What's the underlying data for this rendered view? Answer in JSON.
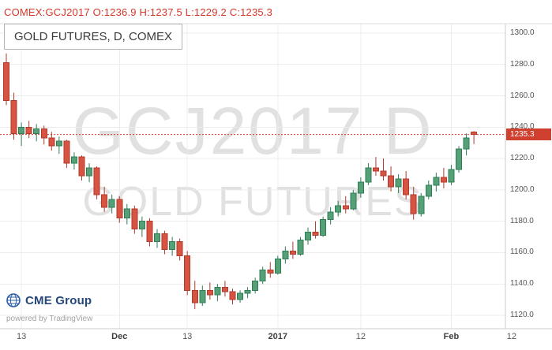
{
  "header": {
    "ohlc_line": "COMEX:GCJ2017 O:1236.9 H:1237.5 L:1229.2 C:1235.3",
    "text_color": "#d7362a"
  },
  "chart": {
    "title": "GOLD FUTURES, D, COMEX",
    "watermark_line1": "GCJ2017 D",
    "watermark_line2": "GOLD FUTURES"
  },
  "price_axis": {
    "last_price_label": "1235.3",
    "label_bg_color": "#d0402f"
  },
  "footer": {
    "cme_label": "CME Group",
    "cme_color": "#25477a",
    "powered_by": "powered by TradingView"
  },
  "chart_data": {
    "type": "candlestick",
    "title": "GOLD FUTURES, D, COMEX",
    "symbol": "COMEX:GCJ2017",
    "exchange": "COMEX",
    "interval": "D",
    "last_bar": {
      "open": 1236.9,
      "high": 1237.5,
      "low": 1229.2,
      "close": 1235.3
    },
    "last_price": 1235.3,
    "ylim": [
      1111.5,
      1306.0
    ],
    "y_ticks": [
      1120,
      1140,
      1160,
      1180,
      1200,
      1220,
      1240,
      1260,
      1280,
      1300
    ],
    "x_ticks": [
      {
        "i": 2,
        "label": "13",
        "bold": false
      },
      {
        "i": 15,
        "label": "Dec",
        "bold": true
      },
      {
        "i": 24,
        "label": "13",
        "bold": false
      },
      {
        "i": 36,
        "label": "2017",
        "bold": true
      },
      {
        "i": 47,
        "label": "12",
        "bold": false
      },
      {
        "i": 59,
        "label": "Feb",
        "bold": true
      },
      {
        "i": 67,
        "label": "12",
        "bold": false
      }
    ],
    "up_color": "#55a077",
    "up_border": "#2f7d55",
    "down_color": "#d75442",
    "down_border": "#b03a2c",
    "grid_color": "#ececec",
    "axis_line_color": "#cccccc",
    "candles_ohlc": [
      [
        1281,
        1287,
        1254,
        1257
      ],
      [
        1257,
        1262,
        1232,
        1236
      ],
      [
        1236,
        1243,
        1228,
        1240
      ],
      [
        1240,
        1244,
        1233,
        1236
      ],
      [
        1236,
        1242,
        1231,
        1239
      ],
      [
        1239,
        1241,
        1229,
        1233
      ],
      [
        1233,
        1237,
        1225,
        1228
      ],
      [
        1228,
        1234,
        1223,
        1231
      ],
      [
        1231,
        1232,
        1214,
        1217
      ],
      [
        1217,
        1224,
        1213,
        1221
      ],
      [
        1221,
        1222,
        1206,
        1209
      ],
      [
        1209,
        1217,
        1205,
        1214
      ],
      [
        1214,
        1215,
        1194,
        1197
      ],
      [
        1197,
        1202,
        1186,
        1189
      ],
      [
        1189,
        1197,
        1185,
        1194
      ],
      [
        1194,
        1196,
        1179,
        1182
      ],
      [
        1182,
        1191,
        1178,
        1188
      ],
      [
        1188,
        1190,
        1172,
        1175
      ],
      [
        1175,
        1183,
        1170,
        1180
      ],
      [
        1180,
        1182,
        1164,
        1167
      ],
      [
        1167,
        1175,
        1163,
        1172
      ],
      [
        1172,
        1174,
        1159,
        1162
      ],
      [
        1162,
        1170,
        1158,
        1167
      ],
      [
        1167,
        1169,
        1155,
        1158
      ],
      [
        1158,
        1161,
        1133,
        1136
      ],
      [
        1136,
        1142,
        1124,
        1128
      ],
      [
        1128,
        1139,
        1126,
        1136
      ],
      [
        1136,
        1141,
        1130,
        1133
      ],
      [
        1133,
        1140,
        1129,
        1138
      ],
      [
        1138,
        1142,
        1132,
        1135
      ],
      [
        1135,
        1137,
        1127,
        1130
      ],
      [
        1130,
        1136,
        1128,
        1134
      ],
      [
        1134,
        1138,
        1131,
        1136
      ],
      [
        1136,
        1144,
        1134,
        1142
      ],
      [
        1142,
        1151,
        1140,
        1149
      ],
      [
        1149,
        1154,
        1144,
        1147
      ],
      [
        1147,
        1158,
        1146,
        1156
      ],
      [
        1156,
        1164,
        1153,
        1161
      ],
      [
        1161,
        1167,
        1156,
        1159
      ],
      [
        1159,
        1170,
        1158,
        1168
      ],
      [
        1168,
        1176,
        1165,
        1173
      ],
      [
        1173,
        1180,
        1169,
        1171
      ],
      [
        1171,
        1183,
        1170,
        1181
      ],
      [
        1181,
        1189,
        1178,
        1186
      ],
      [
        1186,
        1193,
        1183,
        1190
      ],
      [
        1190,
        1196,
        1185,
        1188
      ],
      [
        1188,
        1200,
        1187,
        1198
      ],
      [
        1198,
        1208,
        1195,
        1205
      ],
      [
        1205,
        1217,
        1203,
        1214
      ],
      [
        1214,
        1221,
        1209,
        1212
      ],
      [
        1212,
        1220,
        1206,
        1209
      ],
      [
        1209,
        1215,
        1199,
        1202
      ],
      [
        1202,
        1210,
        1198,
        1207
      ],
      [
        1207,
        1212,
        1194,
        1197
      ],
      [
        1197,
        1202,
        1181,
        1185
      ],
      [
        1185,
        1198,
        1183,
        1196
      ],
      [
        1196,
        1206,
        1194,
        1203
      ],
      [
        1203,
        1211,
        1199,
        1208
      ],
      [
        1208,
        1214,
        1201,
        1205
      ],
      [
        1205,
        1216,
        1203,
        1213
      ],
      [
        1213,
        1228,
        1211,
        1226
      ],
      [
        1226,
        1236,
        1222,
        1233
      ],
      [
        1236.9,
        1237.5,
        1229.2,
        1235.3
      ]
    ]
  }
}
